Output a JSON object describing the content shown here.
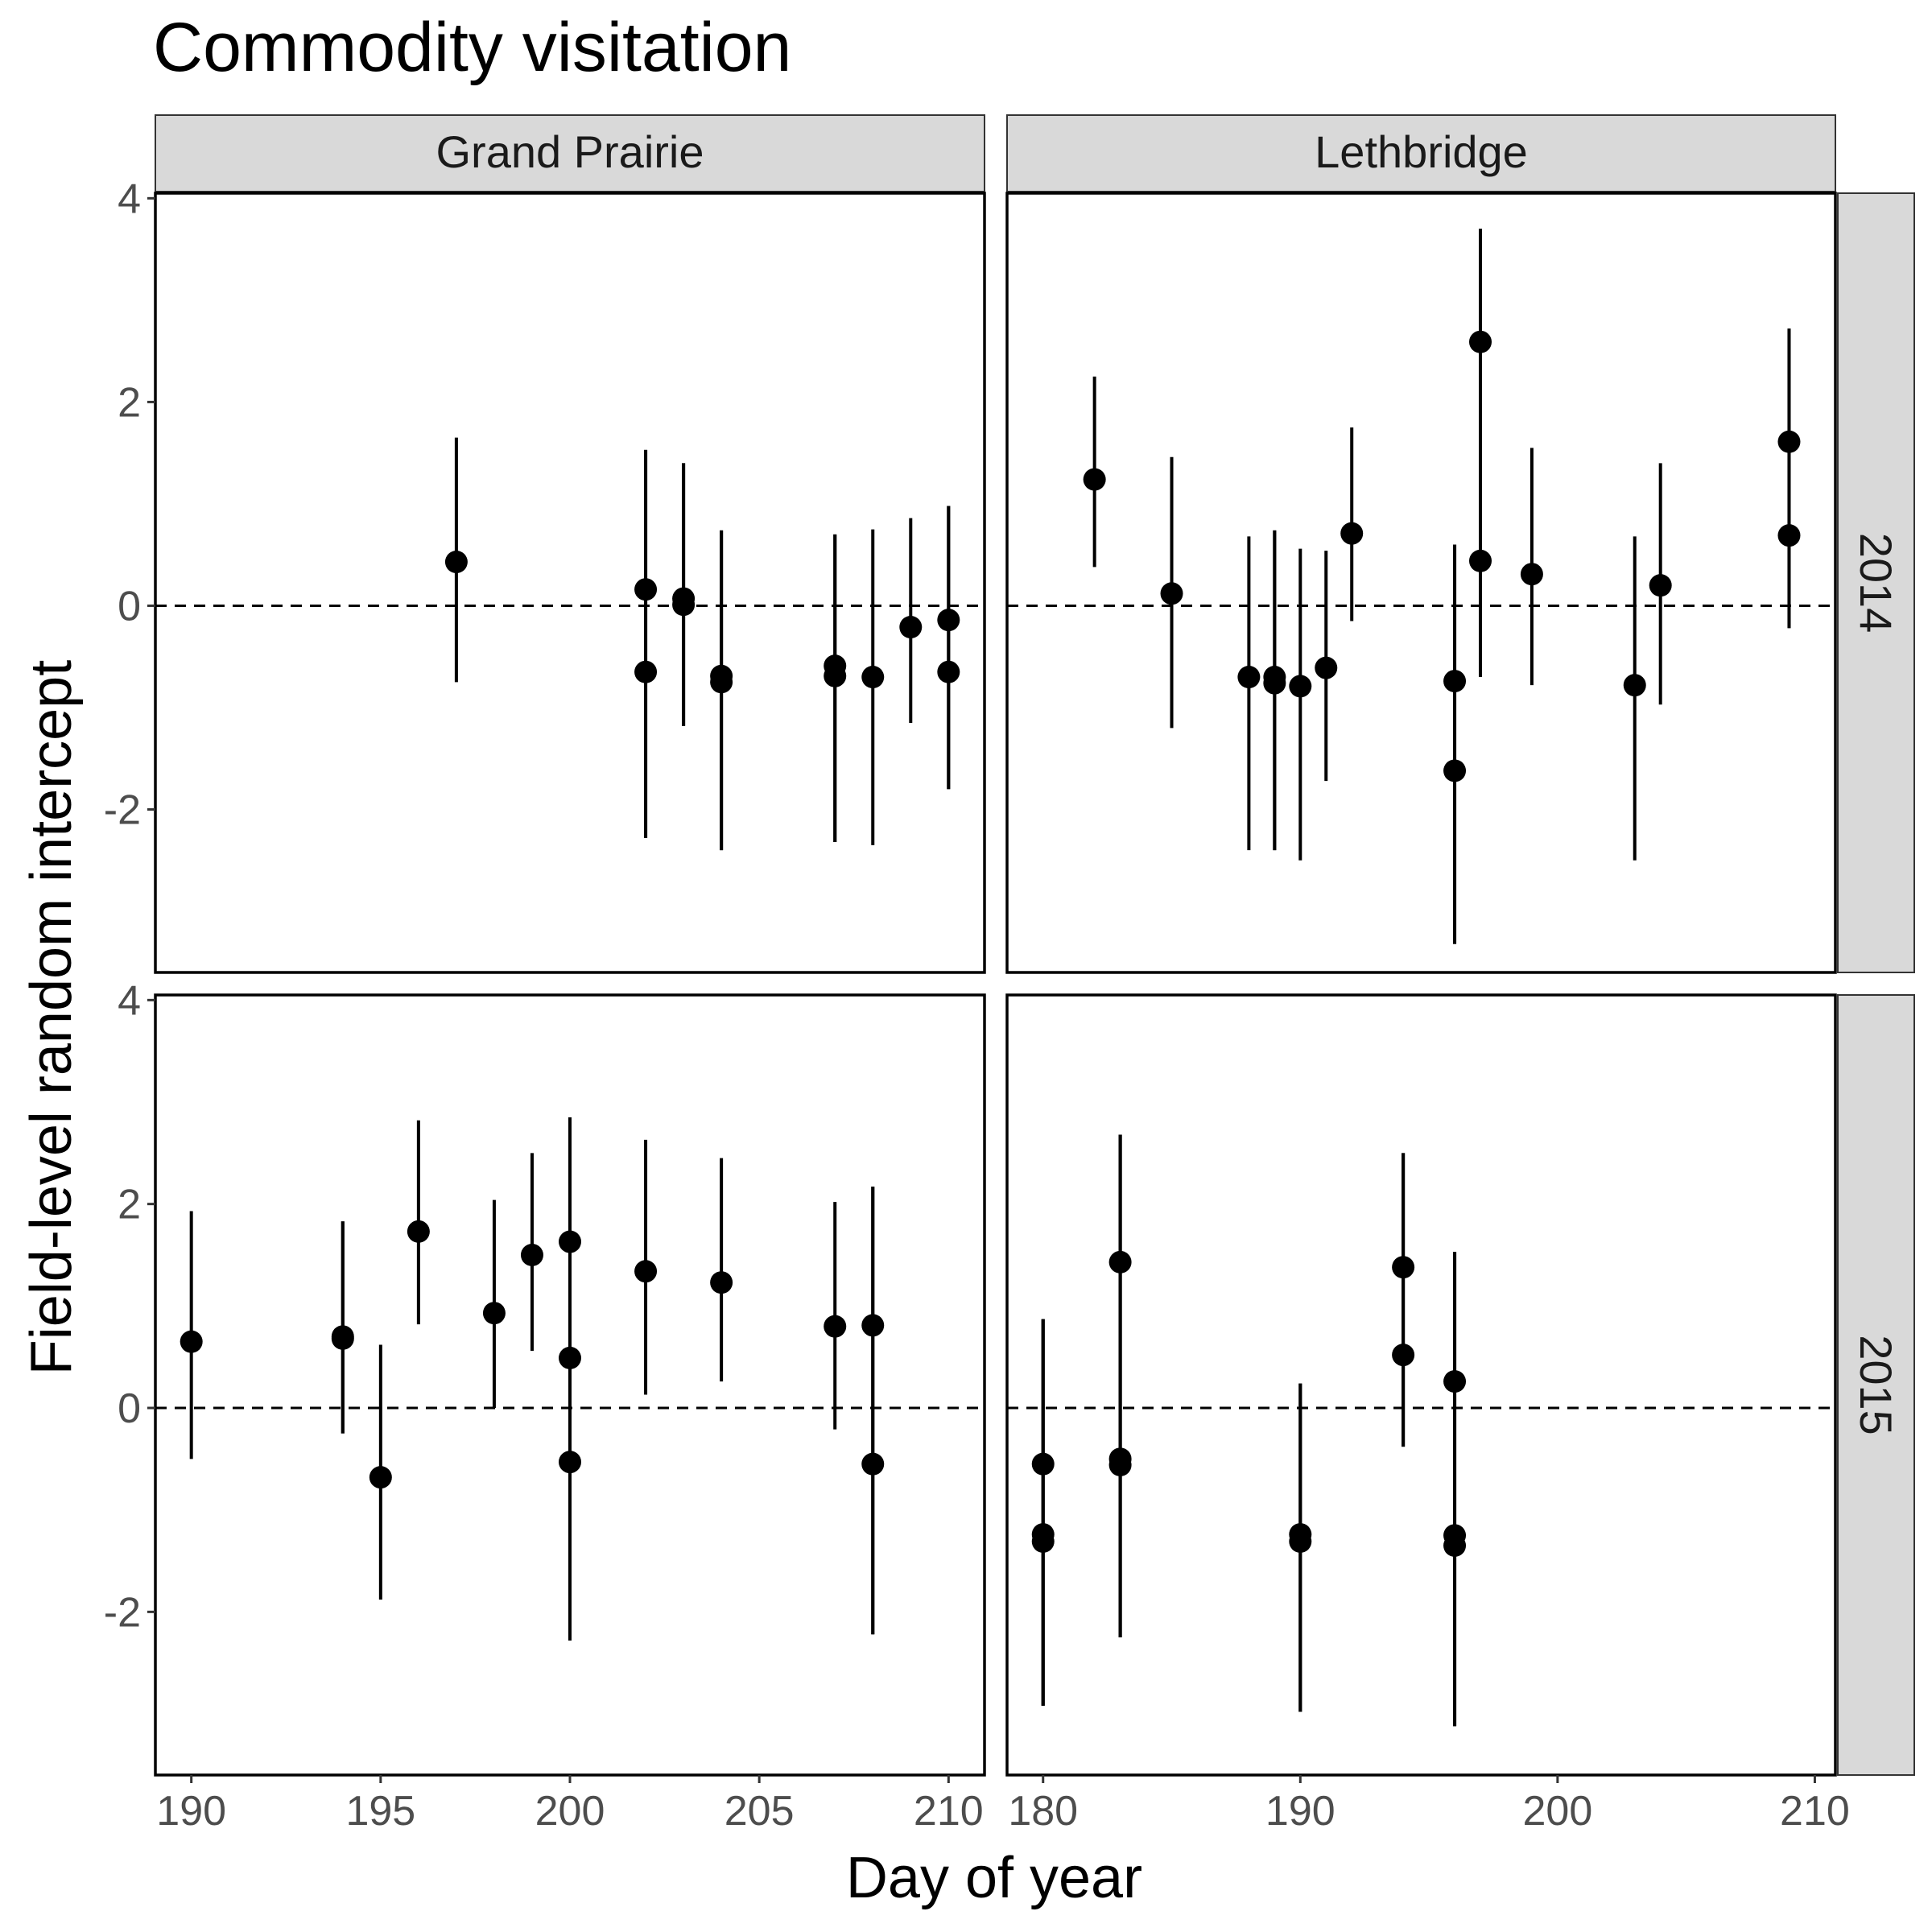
{
  "chart_data": {
    "type": "scatter",
    "title": "Commodity visitation",
    "xlabel": "Day of year",
    "ylabel": "Field-level random intercept",
    "facet_columns": [
      "Grand Prairie",
      "Lethbridge"
    ],
    "facet_rows": [
      "2014",
      "2015"
    ],
    "y_ticks": [
      "-2",
      "0",
      "2",
      "4"
    ],
    "y_tick_values": [
      -2,
      0,
      2,
      4
    ],
    "ylim": [
      -3.6,
      4.05
    ],
    "x_scales": {
      "Grand Prairie": {
        "xlim": [
          189.05,
          210.95
        ],
        "ticks": [
          "190",
          "195",
          "200",
          "205",
          "210"
        ],
        "tick_values": [
          190,
          195,
          200,
          205,
          210
        ]
      },
      "Lethbridge": {
        "xlim": [
          178.6,
          210.8
        ],
        "ticks": [
          "180",
          "190",
          "200",
          "210"
        ],
        "tick_values": [
          180,
          190,
          200,
          210
        ]
      }
    },
    "reference_line": {
      "y": 0,
      "style": "dashed"
    },
    "grid": false,
    "panels": [
      {
        "site": "Grand Prairie",
        "year": "2014",
        "points": [
          {
            "x": 197,
            "y": 0.43,
            "lo": -0.75,
            "hi": 1.65
          },
          {
            "x": 202,
            "y": 0.16,
            "lo": -2.28,
            "hi": 1.53
          },
          {
            "x": 202,
            "y": -0.65,
            "lo": -2.28,
            "hi": 1.53
          },
          {
            "x": 203,
            "y": 0.07,
            "lo": -1.18,
            "hi": 1.4
          },
          {
            "x": 203,
            "y": 0.01,
            "lo": -1.18,
            "hi": 1.4
          },
          {
            "x": 204,
            "y": -0.69,
            "lo": -2.4,
            "hi": 0.74
          },
          {
            "x": 204,
            "y": -0.75,
            "lo": -2.4,
            "hi": 0.74
          },
          {
            "x": 207,
            "y": -0.59,
            "lo": -2.32,
            "hi": 0.7
          },
          {
            "x": 207,
            "y": -0.69,
            "lo": -2.32,
            "hi": 0.7
          },
          {
            "x": 208,
            "y": -0.7,
            "lo": -2.35,
            "hi": 0.75
          },
          {
            "x": 209,
            "y": -0.21,
            "lo": -1.15,
            "hi": 0.86
          },
          {
            "x": 210,
            "y": -0.14,
            "lo": -1.8,
            "hi": 0.98
          },
          {
            "x": 210,
            "y": -0.65,
            "lo": -1.8,
            "hi": 0.98
          }
        ]
      },
      {
        "site": "Lethbridge",
        "year": "2014",
        "points": [
          {
            "x": 182,
            "y": 1.24,
            "lo": 0.38,
            "hi": 2.25
          },
          {
            "x": 185,
            "y": 0.12,
            "lo": -1.2,
            "hi": 1.46
          },
          {
            "x": 188,
            "y": -0.7,
            "lo": -2.4,
            "hi": 0.68
          },
          {
            "x": 189,
            "y": -0.7,
            "lo": -2.4,
            "hi": 0.74
          },
          {
            "x": 189,
            "y": -0.76,
            "lo": -2.4,
            "hi": 0.74
          },
          {
            "x": 190,
            "y": -0.79,
            "lo": -2.5,
            "hi": 0.56
          },
          {
            "x": 191,
            "y": -0.61,
            "lo": -1.72,
            "hi": 0.54
          },
          {
            "x": 192,
            "y": 0.71,
            "lo": -0.15,
            "hi": 1.75
          },
          {
            "x": 196,
            "y": -0.74,
            "lo": -3.32,
            "hi": 0.6
          },
          {
            "x": 196,
            "y": -1.62,
            "lo": -3.32,
            "hi": 0.6
          },
          {
            "x": 197,
            "y": 2.59,
            "lo": -0.7,
            "hi": 3.7
          },
          {
            "x": 197,
            "y": 0.44,
            "lo": -0.7,
            "hi": 3.7
          },
          {
            "x": 199,
            "y": 0.31,
            "lo": -0.78,
            "hi": 1.55
          },
          {
            "x": 203,
            "y": -0.78,
            "lo": -2.5,
            "hi": 0.68
          },
          {
            "x": 204,
            "y": 0.2,
            "lo": -0.97,
            "hi": 1.4
          },
          {
            "x": 209,
            "y": 1.61,
            "lo": -0.22,
            "hi": 2.72
          },
          {
            "x": 209,
            "y": 0.69,
            "lo": -0.22,
            "hi": 2.72
          }
        ]
      },
      {
        "site": "Grand Prairie",
        "year": "2015",
        "points": [
          {
            "x": 190,
            "y": 0.65,
            "lo": -0.5,
            "hi": 1.93
          },
          {
            "x": 194,
            "y": 0.68,
            "lo": -0.25,
            "hi": 1.83
          },
          {
            "x": 194,
            "y": 0.7,
            "lo": -0.25,
            "hi": 1.83
          },
          {
            "x": 195,
            "y": -0.68,
            "lo": -1.88,
            "hi": 0.62
          },
          {
            "x": 196,
            "y": 1.73,
            "lo": 0.82,
            "hi": 2.82
          },
          {
            "x": 198,
            "y": 0.93,
            "lo": 0.0,
            "hi": 2.04
          },
          {
            "x": 199,
            "y": 1.5,
            "lo": 0.56,
            "hi": 2.5
          },
          {
            "x": 200,
            "y": 1.63,
            "lo": -2.28,
            "hi": 2.85
          },
          {
            "x": 200,
            "y": 0.49,
            "lo": -2.28,
            "hi": 2.85
          },
          {
            "x": 200,
            "y": -0.53,
            "lo": -2.28,
            "hi": 2.85
          },
          {
            "x": 202,
            "y": 1.34,
            "lo": 0.13,
            "hi": 2.63
          },
          {
            "x": 204,
            "y": 1.23,
            "lo": 0.26,
            "hi": 2.45
          },
          {
            "x": 207,
            "y": 0.8,
            "lo": -0.21,
            "hi": 2.02
          },
          {
            "x": 208,
            "y": 0.81,
            "lo": -2.22,
            "hi": 2.17
          },
          {
            "x": 208,
            "y": -0.55,
            "lo": -2.22,
            "hi": 2.17
          }
        ]
      },
      {
        "site": "Lethbridge",
        "year": "2015",
        "points": [
          {
            "x": 180,
            "y": -0.55,
            "lo": -2.92,
            "hi": 0.87
          },
          {
            "x": 180,
            "y": -1.24,
            "lo": -2.92,
            "hi": 0.87
          },
          {
            "x": 180,
            "y": -1.31,
            "lo": -2.92,
            "hi": 0.87
          },
          {
            "x": 183,
            "y": 1.43,
            "lo": -2.25,
            "hi": 2.68
          },
          {
            "x": 183,
            "y": -0.5,
            "lo": -2.25,
            "hi": 2.68
          },
          {
            "x": 183,
            "y": -0.56,
            "lo": -2.25,
            "hi": 2.68
          },
          {
            "x": 190,
            "y": -1.24,
            "lo": -2.98,
            "hi": 0.24
          },
          {
            "x": 190,
            "y": -1.31,
            "lo": -2.98,
            "hi": 0.24
          },
          {
            "x": 194,
            "y": 1.38,
            "lo": -0.38,
            "hi": 2.5
          },
          {
            "x": 194,
            "y": 0.52,
            "lo": -0.38,
            "hi": 2.5
          },
          {
            "x": 196,
            "y": 0.26,
            "lo": -3.12,
            "hi": 1.53
          },
          {
            "x": 196,
            "y": -1.25,
            "lo": -3.12,
            "hi": 1.53
          },
          {
            "x": 196,
            "y": -1.35,
            "lo": -3.12,
            "hi": 1.53
          }
        ]
      }
    ]
  }
}
